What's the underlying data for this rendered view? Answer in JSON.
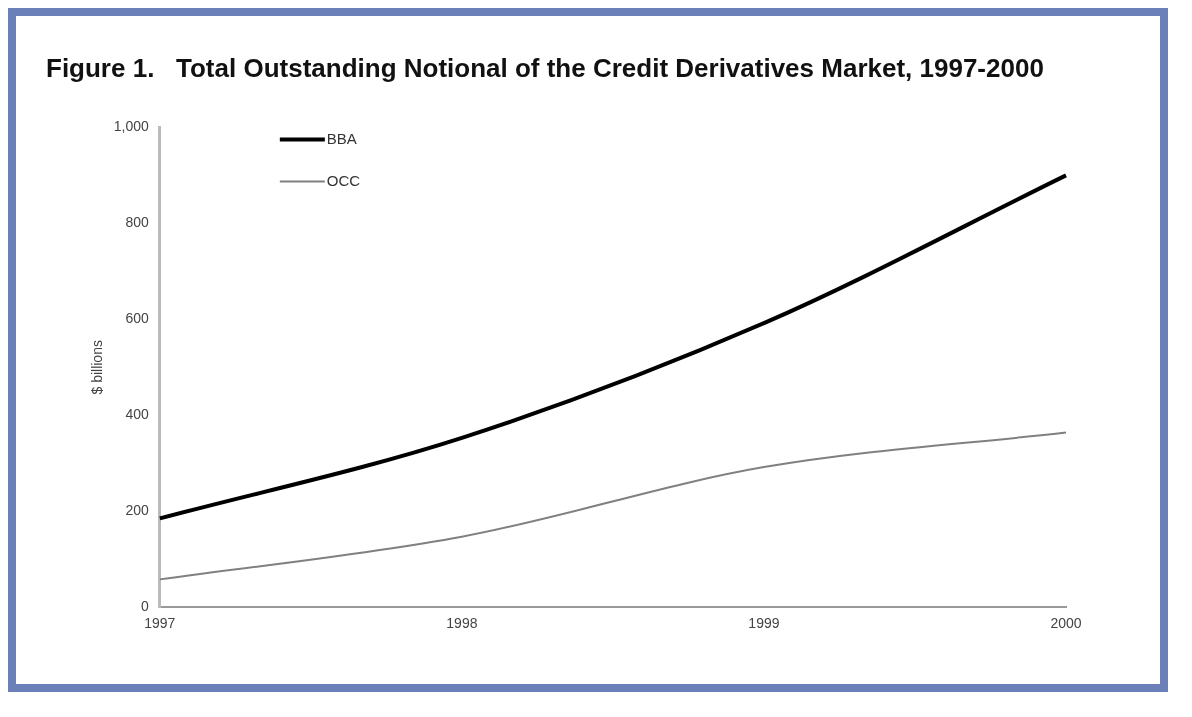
{
  "chart_data": {
    "type": "line",
    "title": "Figure 1.   Total Outstanding Notional of the Credit Derivatives Market, 1997-2000",
    "ylabel": "$ billions",
    "categories": [
      "1997",
      "1998",
      "1999",
      "2000"
    ],
    "series": [
      {
        "name": "BBA",
        "color": "#000000",
        "values": [
          185,
          353,
          592,
          900
        ]
      },
      {
        "name": "OCC",
        "color": "#808080",
        "values": [
          58,
          147,
          292,
          364
        ]
      }
    ],
    "ylim": [
      0,
      1000
    ],
    "yticks": [
      0,
      200,
      400,
      600,
      800,
      {
        "value": 1000,
        "label": "1,000"
      }
    ],
    "grid": false,
    "legend": "top left",
    "marker": "none",
    "line_style": "solid"
  }
}
